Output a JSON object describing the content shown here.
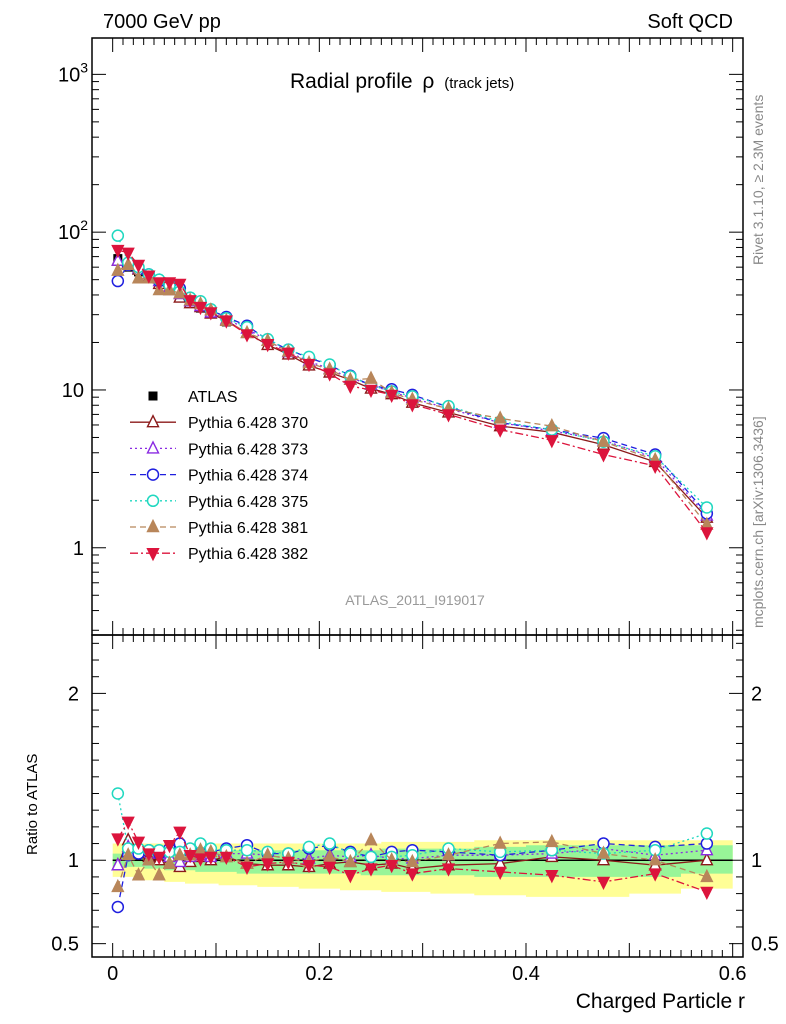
{
  "header": {
    "left": "7000 GeV pp",
    "right": "Soft QCD"
  },
  "side_text": {
    "rivet": "Rivet 3.1.10, ≥ 2.3M events",
    "mcplots": "mcplots.cern.ch [arXiv:1306.3436]"
  },
  "chart_data": [
    {
      "type": "scatter",
      "title_main": "Radial profile",
      "title_symbol": "ρ",
      "title_sub": "(track jets)",
      "watermark": "ATLAS_2011_I919017",
      "yscale": "log",
      "ylim": [
        0.28,
        1700
      ],
      "xlim": [
        -0.02,
        0.61
      ],
      "y_ticks": [
        {
          "value": 1,
          "label": "1"
        },
        {
          "value": 10,
          "label": "10"
        },
        {
          "value": 100,
          "label": "10^2"
        },
        {
          "value": 1000,
          "label": "10^3"
        }
      ],
      "legend_position": "center-left",
      "colors": {
        "ATLAS": "#000000",
        "370": "#8b1a1a",
        "373": "#8a2be2",
        "374": "#1f1fdf",
        "375": "#20d8c0",
        "381": "#b8865a",
        "382": "#dc143c"
      },
      "x": [
        0.005,
        0.015,
        0.025,
        0.035,
        0.045,
        0.055,
        0.065,
        0.075,
        0.085,
        0.095,
        0.11,
        0.13,
        0.15,
        0.17,
        0.19,
        0.21,
        0.23,
        0.25,
        0.27,
        0.29,
        0.325,
        0.375,
        0.425,
        0.475,
        0.525,
        0.575
      ],
      "series": [
        {
          "name": "ATLAS",
          "marker": "square",
          "values": [
            68,
            60,
            56,
            51,
            47,
            44,
            40,
            36,
            33,
            30.5,
            27,
            23.5,
            20,
            17.3,
            15,
            13.2,
            11.7,
            10.5,
            9.6,
            8.8,
            7.4,
            6.0,
            5.3,
            4.5,
            3.6,
            1.55
          ]
        },
        {
          "name": "Pythia 6.428 370",
          "marker": "triangle-open",
          "line": "solid",
          "values": [
            66,
            64,
            58,
            52,
            47,
            43,
            38.5,
            35.5,
            33.5,
            30.5,
            27.5,
            23,
            19.3,
            16.8,
            14.3,
            12.9,
            11.6,
            10.2,
            9.4,
            8.3,
            7.2,
            5.9,
            5.4,
            4.5,
            3.5,
            1.55
          ]
        },
        {
          "name": "Pythia 6.428 373",
          "marker": "triangle-open",
          "line": "dotted",
          "values": [
            66,
            65,
            59,
            51,
            49,
            45,
            40.5,
            36.5,
            34,
            31,
            28,
            24.5,
            20.5,
            17.4,
            15.2,
            13.6,
            11.9,
            10.8,
            9.7,
            8.9,
            7.6,
            6.2,
            5.5,
            4.8,
            3.7,
            1.6
          ]
        },
        {
          "name": "Pythia 6.428 374",
          "marker": "circle-open",
          "line": "dashed",
          "values": [
            49,
            62,
            58,
            54,
            49,
            47,
            44,
            38,
            36,
            32,
            29,
            25.5,
            20.8,
            18,
            16,
            14.4,
            12.3,
            10.7,
            10.1,
            9.3,
            7.8,
            6.2,
            5.6,
            4.95,
            3.9,
            1.65
          ]
        },
        {
          "name": "Pythia 6.428 375",
          "marker": "circle-open",
          "line": "dotted",
          "values": [
            95,
            64,
            60,
            54,
            50,
            46,
            42,
            38.5,
            36.5,
            32.5,
            28.5,
            25,
            21,
            18,
            16.2,
            14.5,
            12.2,
            10.7,
            9.8,
            9.1,
            7.9,
            6.3,
            5.6,
            4.7,
            3.8,
            1.8
          ]
        },
        {
          "name": "Pythia 6.428 381",
          "marker": "triangle-filled",
          "line": "dashed",
          "values": [
            57,
            62,
            51,
            51,
            43,
            43,
            41,
            37,
            35,
            32,
            27.5,
            23,
            20.5,
            17.5,
            14.8,
            13.5,
            11.6,
            11.8,
            9.6,
            8.7,
            7.6,
            6.6,
            5.9,
            4.7,
            3.6,
            1.4
          ]
        },
        {
          "name": "Pythia 6.428 382",
          "marker": "triangle-down-filled",
          "line": "dashdot",
          "values": [
            77,
            74,
            62,
            53,
            48,
            48,
            47,
            37,
            33.5,
            31,
            27.5,
            22.5,
            19.5,
            17.2,
            14.6,
            12.7,
            10.6,
            10.0,
            9.3,
            8.1,
            7.0,
            5.6,
            4.8,
            3.9,
            3.3,
            1.25
          ]
        }
      ]
    },
    {
      "type": "scatter",
      "ylabel": "Ratio to ATLAS",
      "xlabel": "Charged Particle r",
      "ylim": [
        0.42,
        2.35
      ],
      "xlim": [
        -0.02,
        0.61
      ],
      "y_ticks": [
        {
          "value": 0.5,
          "label": "0.5"
        },
        {
          "value": 1,
          "label": "1"
        },
        {
          "value": 2,
          "label": "2"
        }
      ],
      "x_ticks": [
        {
          "value": 0,
          "label": "0"
        },
        {
          "value": 0.2,
          "label": "0.2"
        },
        {
          "value": 0.4,
          "label": "0.4"
        },
        {
          "value": 0.6,
          "label": "0.6"
        }
      ],
      "band_stat_sys": {
        "color": "#fffe96",
        "low": [
          0.9,
          0.9,
          0.9,
          0.88,
          0.88,
          0.87,
          0.87,
          0.86,
          0.86,
          0.86,
          0.85,
          0.85,
          0.84,
          0.84,
          0.83,
          0.83,
          0.82,
          0.82,
          0.81,
          0.81,
          0.8,
          0.79,
          0.78,
          0.78,
          0.8,
          0.83
        ],
        "high": [
          1.1,
          1.1,
          1.1,
          1.1,
          1.1,
          1.1,
          1.1,
          1.1,
          1.1,
          1.1,
          1.1,
          1.1,
          1.1,
          1.1,
          1.1,
          1.1,
          1.1,
          1.1,
          1.11,
          1.11,
          1.11,
          1.12,
          1.12,
          1.12,
          1.12,
          1.12
        ]
      },
      "band_stat": {
        "color": "#98f598",
        "low": [
          0.96,
          0.96,
          0.96,
          0.95,
          0.95,
          0.94,
          0.94,
          0.94,
          0.93,
          0.93,
          0.93,
          0.92,
          0.92,
          0.92,
          0.92,
          0.92,
          0.92,
          0.91,
          0.91,
          0.91,
          0.91,
          0.9,
          0.9,
          0.9,
          0.9,
          0.92
        ],
        "high": [
          1.04,
          1.04,
          1.04,
          1.04,
          1.05,
          1.05,
          1.05,
          1.05,
          1.05,
          1.05,
          1.06,
          1.06,
          1.06,
          1.06,
          1.06,
          1.06,
          1.06,
          1.06,
          1.07,
          1.07,
          1.07,
          1.08,
          1.09,
          1.09,
          1.09,
          1.09
        ]
      },
      "x": [
        0.005,
        0.015,
        0.025,
        0.035,
        0.045,
        0.055,
        0.065,
        0.075,
        0.085,
        0.095,
        0.11,
        0.13,
        0.15,
        0.17,
        0.19,
        0.21,
        0.23,
        0.25,
        0.27,
        0.29,
        0.325,
        0.375,
        0.425,
        0.475,
        0.525,
        0.575
      ],
      "series": [
        {
          "name": "Pythia 6.428 370",
          "values": [
            0.97,
            1.12,
            1.04,
            1.02,
            1.0,
            0.98,
            0.96,
            0.99,
            1.02,
            1.0,
            1.02,
            0.98,
            0.97,
            0.97,
            0.96,
            0.98,
            0.99,
            0.97,
            0.98,
            0.95,
            0.97,
            0.98,
            1.02,
            1.0,
            0.97,
            1.0
          ]
        },
        {
          "name": "Pythia 6.428 373",
          "values": [
            0.97,
            1.08,
            1.05,
            1.0,
            1.04,
            1.02,
            0.99,
            1.02,
            1.03,
            1.02,
            1.04,
            1.04,
            1.03,
            1.01,
            1.01,
            1.03,
            1.02,
            1.03,
            1.01,
            1.01,
            1.03,
            1.03,
            1.04,
            1.07,
            1.03,
            1.06
          ]
        },
        {
          "name": "Pythia 6.428 374",
          "values": [
            0.72,
            1.03,
            1.04,
            1.06,
            1.04,
            1.07,
            1.1,
            1.05,
            1.09,
            1.05,
            1.07,
            1.09,
            1.04,
            1.04,
            1.07,
            1.09,
            1.05,
            1.02,
            1.05,
            1.06,
            1.05,
            1.03,
            1.06,
            1.1,
            1.08,
            1.1
          ]
        },
        {
          "name": "Pythia 6.428 375",
          "values": [
            1.4,
            1.07,
            1.07,
            1.06,
            1.06,
            1.05,
            1.05,
            1.07,
            1.1,
            1.07,
            1.06,
            1.06,
            1.05,
            1.04,
            1.08,
            1.1,
            1.04,
            1.02,
            1.02,
            1.03,
            1.07,
            1.05,
            1.06,
            1.04,
            1.06,
            1.16
          ]
        },
        {
          "name": "Pythia 6.428 381",
          "values": [
            0.84,
            1.03,
            0.91,
            1.0,
            0.91,
            0.98,
            1.03,
            1.03,
            1.06,
            1.05,
            1.02,
            0.98,
            1.03,
            1.01,
            0.99,
            1.02,
            0.99,
            1.12,
            1.0,
            0.99,
            1.03,
            1.1,
            1.11,
            1.04,
            1.0,
            0.9
          ]
        },
        {
          "name": "Pythia 6.428 382",
          "values": [
            1.13,
            1.23,
            1.11,
            1.04,
            1.02,
            1.09,
            1.17,
            1.03,
            1.01,
            1.02,
            1.02,
            0.96,
            0.98,
            0.99,
            0.97,
            0.96,
            0.91,
            0.95,
            0.97,
            0.92,
            0.95,
            0.93,
            0.91,
            0.87,
            0.92,
            0.81
          ]
        }
      ]
    }
  ]
}
